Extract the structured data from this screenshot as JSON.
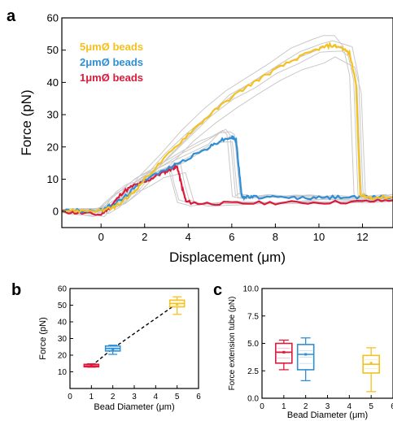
{
  "chart_data": [
    {
      "panel": "a",
      "type": "line",
      "xlabel": "Displacement (μm)",
      "ylabel": "Force (pN)",
      "xlim": [
        -1.8,
        13.4
      ],
      "ylim": [
        -5,
        60
      ],
      "xticks": [
        0,
        2,
        4,
        6,
        8,
        10,
        12
      ],
      "yticks": [
        0,
        10,
        20,
        30,
        40,
        50,
        60
      ],
      "legend_position": "top-left",
      "series": [
        {
          "name": "5μmØ beads",
          "color": "#f5c11e",
          "x": [
            -1.8,
            -1,
            0,
            0.5,
            1,
            1.5,
            2,
            3,
            4,
            5,
            6,
            7,
            8,
            9,
            10,
            10.5,
            11,
            11.4,
            11.7,
            11.8,
            11.9,
            12.1,
            12.5,
            13.4
          ],
          "y": [
            0.3,
            0.2,
            0.3,
            1,
            3,
            6,
            10,
            17,
            24,
            30,
            35.5,
            40,
            44,
            47.5,
            50.5,
            51.5,
            51,
            49,
            40,
            22,
            5,
            4.5,
            4.3,
            4.5
          ]
        },
        {
          "name": "2μmØ beads",
          "color": "#2f8fd6",
          "x": [
            -1.8,
            -1,
            0,
            0.5,
            1,
            1.5,
            2,
            3,
            4,
            5,
            5.5,
            6,
            6.2,
            6.35,
            6.45,
            6.6,
            7,
            8,
            9,
            10,
            11,
            12,
            13.4
          ],
          "y": [
            0.3,
            0.2,
            0.3,
            2,
            4,
            7,
            10,
            13,
            16.5,
            20,
            22,
            23,
            22,
            12,
            5,
            4.5,
            4.4,
            4.3,
            4.2,
            4.2,
            4.5,
            4.3,
            4.5
          ]
        },
        {
          "name": "1μmØ beads",
          "color": "#dc1a3c",
          "x": [
            -1.8,
            -1,
            0,
            0.5,
            1,
            1.5,
            2,
            2.5,
            3,
            3.3,
            3.5,
            3.7,
            3.9,
            4.5,
            6,
            8,
            10,
            12,
            13.4
          ],
          "y": [
            0,
            -0.5,
            -1,
            2,
            6,
            8,
            9,
            11,
            12.5,
            13.5,
            13.8,
            8,
            3,
            2.5,
            2.5,
            2.7,
            2.8,
            3,
            3.5
          ]
        }
      ]
    },
    {
      "panel": "b",
      "type": "box",
      "xlabel": "Bead Diameter (μm)",
      "ylabel": "Force (pN)",
      "xlim": [
        0,
        6
      ],
      "ylim": [
        0,
        60
      ],
      "xticks": [
        0,
        1,
        2,
        3,
        4,
        5,
        6
      ],
      "yticks": [
        10,
        20,
        30,
        40,
        50,
        60
      ],
      "trend_line": "dashed",
      "boxes": [
        {
          "x": 1,
          "color": "#dc1a3c",
          "min": 12.8,
          "q1": 13.0,
          "median": 13.5,
          "q3": 14.5,
          "max": 14.8,
          "mean": 13.5
        },
        {
          "x": 2,
          "color": "#2f8fd6",
          "min": 20.5,
          "q1": 22.5,
          "median": 24,
          "q3": 25.5,
          "max": 26,
          "mean": 23.5
        },
        {
          "x": 5,
          "color": "#f5c11e",
          "min": 44.5,
          "q1": 49,
          "median": 51,
          "q3": 53,
          "max": 55,
          "mean": 50.5
        }
      ]
    },
    {
      "panel": "c",
      "type": "box",
      "xlabel": "Bead Diameter (μm)",
      "ylabel": "Force extension tube (pN)",
      "xlim": [
        0,
        6
      ],
      "ylim": [
        0,
        10
      ],
      "xticks": [
        0,
        1,
        2,
        3,
        4,
        5,
        6
      ],
      "yticks": [
        0.0,
        2.5,
        5.0,
        7.5,
        10.0
      ],
      "boxes": [
        {
          "x": 1,
          "color": "#dc1a3c",
          "min": 2.6,
          "q1": 3.2,
          "median": 4.2,
          "q3": 5.0,
          "max": 5.3,
          "mean": 4.2
        },
        {
          "x": 2,
          "color": "#2f8fd6",
          "min": 1.6,
          "q1": 2.6,
          "median": 4.0,
          "q3": 4.9,
          "max": 5.5,
          "mean": 4.0
        },
        {
          "x": 5,
          "color": "#f5c11e",
          "min": 0.6,
          "q1": 2.3,
          "median": 3.1,
          "q3": 3.9,
          "max": 4.6,
          "mean": 3.2
        }
      ]
    }
  ],
  "labels": {
    "panel_a": "a",
    "panel_b": "b",
    "panel_c": "c"
  }
}
